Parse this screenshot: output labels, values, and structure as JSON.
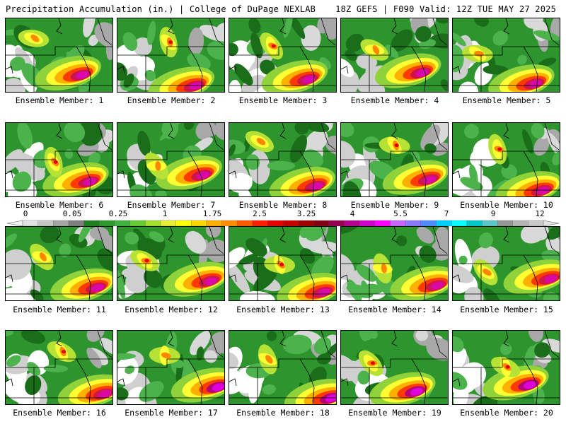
{
  "header": {
    "title": "Precipitation Accumulation (in.) | College of DuPage NEXLAB",
    "run_info": "18Z GEFS | F090 Valid: 12Z TUE MAY 27 2025"
  },
  "members": [
    {
      "label": "Ensemble Member: 1"
    },
    {
      "label": "Ensemble Member: 2"
    },
    {
      "label": "Ensemble Member: 3"
    },
    {
      "label": "Ensemble Member: 4"
    },
    {
      "label": "Ensemble Member: 5"
    },
    {
      "label": "Ensemble Member: 6"
    },
    {
      "label": "Ensemble Member: 7"
    },
    {
      "label": "Ensemble Member: 8"
    },
    {
      "label": "Ensemble Member: 9"
    },
    {
      "label": "Ensemble Member: 10"
    },
    {
      "label": "Ensemble Member: 11"
    },
    {
      "label": "Ensemble Member: 12"
    },
    {
      "label": "Ensemble Member: 13"
    },
    {
      "label": "Ensemble Member: 14"
    },
    {
      "label": "Ensemble Member: 15"
    },
    {
      "label": "Ensemble Member: 16"
    },
    {
      "label": "Ensemble Member: 17"
    },
    {
      "label": "Ensemble Member: 18"
    },
    {
      "label": "Ensemble Member: 19"
    },
    {
      "label": "Ensemble Member: 20"
    }
  ],
  "colorbar": {
    "tick_labels": [
      "0",
      "0.05",
      "0.25",
      "1",
      "1.75",
      "2.5",
      "3.25",
      "4",
      "5.5",
      "7",
      "9",
      "12"
    ],
    "colors": [
      "#e2e2e2",
      "#c6c6c6",
      "#a5a5a5",
      "#7f7f7f",
      "#1f7f1f",
      "#2c9a2c",
      "#3fb33f",
      "#66cc33",
      "#a6e02f",
      "#e6f032",
      "#ffff00",
      "#ffd700",
      "#ffb000",
      "#ff8c00",
      "#ff5a00",
      "#ff1e00",
      "#e60000",
      "#c80000",
      "#a00000",
      "#840014",
      "#960050",
      "#b4008c",
      "#d200c8",
      "#ff00ff",
      "#c864ff",
      "#8c78ff",
      "#508cff",
      "#00d2ff",
      "#00ffff",
      "#00c8c8",
      "#5ac8c8",
      "#969696",
      "#b4b4b4",
      "#c8c8c8"
    ]
  }
}
